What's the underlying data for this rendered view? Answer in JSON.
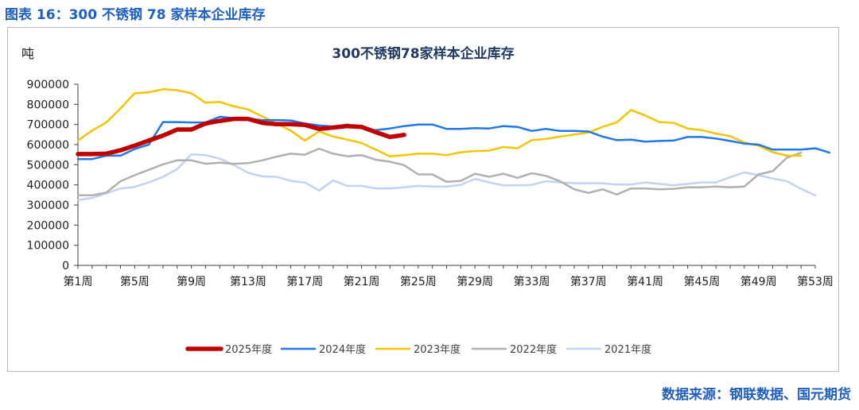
{
  "figure_title": "图表 16：300 不锈钢 78 家样本企业库存",
  "source": "数据来源：钢联数据、国元期货",
  "colors": {
    "title": "#1f5fbf",
    "chart_title": "#1f3864",
    "axis": "#404040",
    "s2025": "#c00000",
    "s2024": "#1f78e8",
    "s2023": "#f2c500",
    "s2022": "#b0b0b0",
    "s2021": "#c2d2f4"
  },
  "chart_data": {
    "type": "line",
    "title": "300不锈钢78家样本企业库存",
    "ylabel": "吨",
    "xlabel": "",
    "ylim": [
      0,
      900000
    ],
    "yticks": [
      0,
      100000,
      200000,
      300000,
      400000,
      500000,
      600000,
      700000,
      800000,
      900000
    ],
    "xlim": [
      1,
      53
    ],
    "xticks": [
      1,
      5,
      9,
      13,
      17,
      21,
      25,
      29,
      33,
      37,
      41,
      45,
      49,
      53
    ],
    "xtick_labels": [
      "第1周",
      "第5周",
      "第9周",
      "第13周",
      "第17周",
      "第21周",
      "第25周",
      "第29周",
      "第33周",
      "第37周",
      "第41周",
      "第45周",
      "第49周",
      "第53周"
    ],
    "legend_position": "bottom",
    "grid": false,
    "series": [
      {
        "name": "2025年度",
        "color_key": "s2025",
        "width": 5.5,
        "x_start": 1,
        "values": [
          553000,
          553000,
          555000,
          572000,
          595000,
          620000,
          645000,
          675000,
          675000,
          705000,
          718000,
          728000,
          728000,
          708000,
          702000,
          702000,
          698000,
          678000,
          685000,
          692000,
          688000,
          662000,
          638000,
          648000
        ]
      },
      {
        "name": "2024年度",
        "color_key": "s2024",
        "width": 2.5,
        "x_start": 1,
        "values": [
          528000,
          528000,
          545000,
          545000,
          578000,
          600000,
          712000,
          712000,
          710000,
          710000,
          738000,
          732000,
          728000,
          722000,
          722000,
          720000,
          705000,
          695000,
          690000,
          700000,
          685000,
          672000,
          680000,
          692000,
          700000,
          700000,
          678000,
          678000,
          682000,
          680000,
          692000,
          688000,
          668000,
          678000,
          668000,
          668000,
          665000,
          640000,
          622000,
          625000,
          615000,
          618000,
          620000,
          638000,
          638000,
          630000,
          618000,
          605000,
          600000,
          575000,
          575000,
          575000,
          582000,
          560000
        ]
      },
      {
        "name": "2023年度",
        "color_key": "s2023",
        "width": 2.5,
        "x_start": 1,
        "values": [
          620000,
          670000,
          710000,
          780000,
          855000,
          860000,
          875000,
          870000,
          855000,
          808000,
          812000,
          790000,
          775000,
          740000,
          705000,
          670000,
          620000,
          665000,
          640000,
          625000,
          608000,
          575000,
          542000,
          548000,
          555000,
          555000,
          548000,
          562000,
          568000,
          570000,
          588000,
          582000,
          622000,
          628000,
          640000,
          650000,
          660000,
          688000,
          710000,
          772000,
          745000,
          712000,
          708000,
          680000,
          672000,
          655000,
          642000,
          610000,
          595000,
          562000,
          545000,
          545000
        ]
      },
      {
        "name": "2022年度",
        "color_key": "s2022",
        "width": 2.5,
        "x_start": 1,
        "values": [
          348000,
          348000,
          362000,
          418000,
          448000,
          475000,
          502000,
          522000,
          522000,
          505000,
          510000,
          505000,
          508000,
          522000,
          540000,
          555000,
          550000,
          580000,
          555000,
          542000,
          548000,
          525000,
          515000,
          498000,
          452000,
          452000,
          415000,
          420000,
          455000,
          440000,
          455000,
          435000,
          458000,
          445000,
          418000,
          378000,
          360000,
          378000,
          352000,
          382000,
          382000,
          378000,
          380000,
          388000,
          388000,
          392000,
          388000,
          392000,
          452000,
          468000,
          535000,
          560000
        ]
      },
      {
        "name": "2021年度",
        "color_key": "s2021",
        "width": 2.5,
        "x_start": 1,
        "values": [
          325000,
          335000,
          358000,
          382000,
          390000,
          412000,
          440000,
          478000,
          552000,
          548000,
          530000,
          498000,
          460000,
          442000,
          440000,
          420000,
          412000,
          372000,
          422000,
          395000,
          395000,
          382000,
          382000,
          388000,
          395000,
          392000,
          392000,
          400000,
          430000,
          412000,
          398000,
          398000,
          400000,
          418000,
          412000,
          408000,
          408000,
          408000,
          402000,
          402000,
          412000,
          405000,
          398000,
          405000,
          412000,
          412000,
          438000,
          462000,
          448000,
          432000,
          418000,
          380000,
          348000
        ]
      }
    ]
  }
}
